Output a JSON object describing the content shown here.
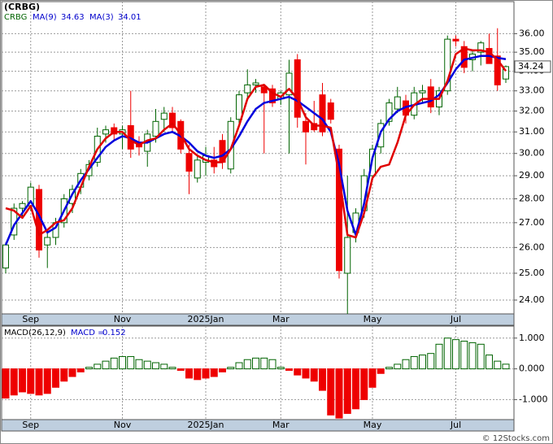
{
  "chart_data": [
    {
      "type": "candlestick",
      "title": "(CRBG)",
      "symbol": "CRBG",
      "log_scale": true,
      "grid": true,
      "up_color": "#006400",
      "down_color": "#ee0000",
      "last_price_label": "34.24",
      "categories": [
        null,
        null,
        null,
        "Sep",
        null,
        null,
        null,
        null,
        null,
        null,
        null,
        null,
        null,
        null,
        "Nov",
        null,
        null,
        null,
        null,
        null,
        null,
        null,
        null,
        null,
        "2025Jan",
        null,
        null,
        null,
        null,
        null,
        null,
        null,
        null,
        "Mar",
        null,
        null,
        null,
        null,
        null,
        null,
        null,
        null,
        null,
        null,
        "May",
        null,
        null,
        null,
        null,
        null,
        null,
        null,
        null,
        null,
        "Jul",
        null,
        null,
        null,
        null,
        null,
        null
      ],
      "open": [
        25.2,
        26.5,
        27.6,
        27.7,
        28.4,
        26.1,
        26.4,
        27.0,
        27.8,
        28.5,
        29.0,
        29.6,
        30.9,
        31.2,
        30.9,
        31.3,
        30.5,
        30.1,
        30.8,
        31.6,
        31.9,
        31.5,
        30.0,
        28.9,
        29.6,
        29.7,
        30.6,
        29.3,
        31.6,
        32.9,
        33.3,
        33.2,
        33.1,
        32.6,
        32.8,
        34.6,
        31.5,
        31.4,
        32.8,
        32.4,
        30.2,
        25.0,
        26.6,
        27.5,
        29.0,
        30.3,
        31.5,
        32.1,
        32.5,
        31.8,
        32.9,
        33.2,
        32.2,
        33.0,
        35.7,
        35.3,
        34.6,
        35.0,
        35.2,
        34.8,
        33.6
      ],
      "high": [
        26.2,
        27.8,
        27.9,
        28.7,
        28.6,
        26.6,
        27.2,
        28.2,
        28.6,
        29.3,
        29.7,
        31.2,
        31.3,
        31.4,
        31.3,
        33.0,
        30.8,
        31.1,
        32.1,
        32.2,
        32.2,
        31.6,
        30.4,
        29.9,
        30.3,
        30.3,
        30.9,
        31.7,
        33.0,
        34.1,
        33.6,
        33.3,
        33.3,
        33.0,
        34.6,
        34.9,
        31.9,
        32.5,
        33.4,
        32.6,
        30.4,
        29.0,
        27.6,
        29.3,
        30.4,
        31.6,
        32.6,
        33.2,
        32.8,
        33.2,
        33.3,
        33.6,
        33.2,
        35.9,
        35.9,
        35.6,
        35.1,
        35.6,
        36.0,
        36.3,
        34.3
      ],
      "low": [
        25.0,
        26.3,
        27.2,
        27.5,
        25.6,
        25.2,
        26.1,
        26.8,
        27.4,
        28.2,
        28.8,
        29.4,
        30.5,
        30.6,
        30.2,
        29.8,
        29.9,
        29.4,
        30.5,
        31.0,
        31.0,
        30.0,
        28.2,
        28.7,
        29.0,
        29.1,
        29.3,
        29.1,
        31.4,
        32.6,
        32.9,
        30.0,
        32.2,
        32.3,
        30.0,
        31.2,
        29.5,
        31.0,
        30.8,
        31.4,
        24.8,
        23.5,
        26.2,
        27.2,
        28.9,
        30.0,
        31.3,
        31.9,
        31.4,
        31.6,
        32.4,
        31.9,
        31.8,
        32.8,
        35.3,
        33.9,
        34.0,
        34.3,
        34.5,
        33.0,
        33.4
      ],
      "close": [
        26.1,
        27.6,
        27.8,
        28.5,
        25.9,
        26.4,
        27.0,
        28.0,
        28.4,
        29.1,
        29.5,
        30.8,
        31.1,
        30.9,
        31.1,
        30.2,
        30.3,
        30.9,
        31.5,
        31.9,
        31.2,
        30.2,
        29.2,
        29.7,
        29.9,
        29.4,
        29.6,
        31.5,
        32.8,
        33.3,
        33.4,
        32.9,
        32.4,
        32.9,
        33.9,
        31.7,
        31.0,
        31.1,
        31.0,
        31.6,
        25.1,
        26.4,
        27.4,
        29.0,
        30.2,
        31.4,
        32.4,
        32.7,
        31.8,
        32.9,
        33.0,
        32.2,
        33.0,
        35.7,
        35.6,
        34.2,
        34.9,
        35.5,
        34.4,
        33.3,
        34.24
      ],
      "series": [
        {
          "name": "MA(9)",
          "color": "#0000dd",
          "values": [
            26.1,
            26.9,
            27.4,
            27.9,
            27.3,
            26.6,
            26.8,
            27.5,
            28.2,
            28.8,
            29.3,
            29.8,
            30.3,
            30.6,
            30.8,
            30.7,
            30.5,
            30.5,
            30.7,
            30.9,
            31.0,
            30.8,
            30.5,
            30.1,
            29.9,
            29.8,
            29.9,
            30.2,
            30.8,
            31.5,
            32.1,
            32.4,
            32.5,
            32.6,
            32.7,
            32.5,
            32.2,
            31.9,
            31.6,
            31.0,
            29.5,
            27.5,
            26.5,
            27.8,
            29.8,
            31.0,
            31.6,
            32.0,
            32.2,
            32.3,
            32.4,
            32.5,
            32.8,
            33.4,
            34.1,
            34.6,
            34.7,
            34.8,
            34.8,
            34.7,
            34.63
          ]
        },
        {
          "name": "MA(3)",
          "color": "#e00000",
          "values": [
            27.6,
            27.5,
            27.2,
            27.7,
            26.5,
            26.7,
            27.0,
            27.1,
            27.6,
            28.5,
            29.4,
            30.2,
            30.7,
            31.0,
            31.0,
            30.6,
            30.4,
            30.6,
            30.7,
            31.1,
            31.4,
            30.9,
            30.2,
            29.9,
            29.7,
            29.6,
            29.6,
            30.2,
            31.3,
            32.6,
            33.2,
            33.3,
            32.9,
            32.7,
            33.1,
            32.6,
            31.7,
            31.3,
            31.3,
            31.2,
            29.0,
            26.5,
            26.4,
            27.4,
            28.9,
            29.4,
            29.5,
            30.5,
            31.8,
            32.3,
            32.6,
            32.6,
            32.6,
            33.5,
            34.9,
            35.2,
            35.1,
            35.1,
            35.0,
            34.6,
            34.01
          ]
        }
      ],
      "ylim": [
        23.5,
        37.8
      ],
      "yticks": [
        {
          "value": 24,
          "label": "24.00"
        },
        {
          "value": 25,
          "label": "25.00"
        },
        {
          "value": 26,
          "label": "26.00"
        },
        {
          "value": 27,
          "label": "27.00"
        },
        {
          "value": 28,
          "label": "28.00"
        },
        {
          "value": 29,
          "label": "29.00"
        },
        {
          "value": 30,
          "label": "30.00"
        },
        {
          "value": 31,
          "label": "31.00"
        },
        {
          "value": 32,
          "label": "32.00"
        },
        {
          "value": 33,
          "label": "33.00"
        },
        {
          "value": 34,
          "label": "34.00"
        },
        {
          "value": 35,
          "label": "35.00"
        },
        {
          "value": 36,
          "label": "36.00"
        }
      ]
    },
    {
      "type": "bar",
      "title": "MACD(26,12,9)",
      "value_caption": "MACD =",
      "grid": true,
      "pos_color": "#006400",
      "neg_color": "#ee0000",
      "categories": [
        null,
        null,
        null,
        "Sep",
        null,
        null,
        null,
        null,
        null,
        null,
        null,
        null,
        null,
        null,
        "Nov",
        null,
        null,
        null,
        null,
        null,
        null,
        null,
        null,
        null,
        "2025Jan",
        null,
        null,
        null,
        null,
        null,
        null,
        null,
        null,
        "Mar",
        null,
        null,
        null,
        null,
        null,
        null,
        null,
        null,
        null,
        null,
        "May",
        null,
        null,
        null,
        null,
        null,
        null,
        null,
        null,
        null,
        "Jul",
        null,
        null,
        null,
        null,
        null,
        null
      ],
      "values": [
        -0.95,
        -0.85,
        -0.75,
        -0.8,
        -0.85,
        -0.8,
        -0.6,
        -0.4,
        -0.25,
        -0.1,
        0.05,
        0.15,
        0.25,
        0.35,
        0.4,
        0.4,
        0.3,
        0.25,
        0.2,
        0.15,
        0.05,
        -0.05,
        -0.3,
        -0.35,
        -0.3,
        -0.25,
        -0.1,
        0.05,
        0.2,
        0.3,
        0.35,
        0.35,
        0.3,
        0.05,
        -0.05,
        -0.2,
        -0.3,
        -0.4,
        -0.7,
        -1.5,
        -1.6,
        -1.45,
        -1.3,
        -1.0,
        -0.6,
        -0.15,
        0.05,
        0.15,
        0.3,
        0.4,
        0.45,
        0.5,
        0.8,
        1.0,
        0.95,
        0.9,
        0.85,
        0.8,
        0.45,
        0.25,
        0.152
      ],
      "ylim": [
        -1.65,
        1.39
      ],
      "yticks": [
        {
          "value": 1,
          "label": "1.000"
        },
        {
          "value": 0,
          "label": "0.000"
        },
        {
          "value": -1,
          "label": "-1.000"
        }
      ]
    },
    {
      "type": "text",
      "watermark": "© 12Stocks.com"
    }
  ]
}
